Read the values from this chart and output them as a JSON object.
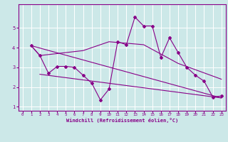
{
  "title": "",
  "xlabel": "Windchill (Refroidissement éolien,°C)",
  "ylabel": "",
  "background_color": "#cce8e8",
  "line_color": "#880088",
  "xlim": [
    -0.5,
    23.5
  ],
  "ylim": [
    0.8,
    6.2
  ],
  "yticks": [
    1,
    2,
    3,
    4,
    5
  ],
  "xticks": [
    0,
    1,
    2,
    3,
    4,
    5,
    6,
    7,
    8,
    9,
    10,
    11,
    12,
    13,
    14,
    15,
    16,
    17,
    18,
    19,
    20,
    21,
    22,
    23
  ],
  "line_main": {
    "x": [
      1,
      2,
      3,
      4,
      5,
      6,
      7,
      8,
      9,
      10,
      11,
      12,
      13,
      14,
      15,
      16,
      17,
      18,
      19,
      20,
      21,
      22,
      23
    ],
    "y": [
      4.1,
      3.6,
      2.7,
      3.05,
      3.05,
      3.0,
      2.6,
      2.2,
      1.35,
      1.9,
      4.3,
      4.15,
      5.55,
      5.1,
      5.1,
      3.5,
      4.5,
      3.75,
      3.0,
      2.6,
      2.3,
      1.5,
      1.55
    ]
  },
  "line_trend1": {
    "x": [
      1,
      23
    ],
    "y": [
      4.1,
      1.45
    ]
  },
  "line_trend2": {
    "x": [
      2,
      23
    ],
    "y": [
      2.65,
      1.45
    ]
  },
  "line_smooth": {
    "x": [
      1,
      2,
      4,
      7,
      10,
      14,
      18,
      23
    ],
    "y": [
      4.1,
      3.6,
      3.7,
      3.85,
      4.3,
      4.15,
      3.2,
      2.4
    ]
  }
}
